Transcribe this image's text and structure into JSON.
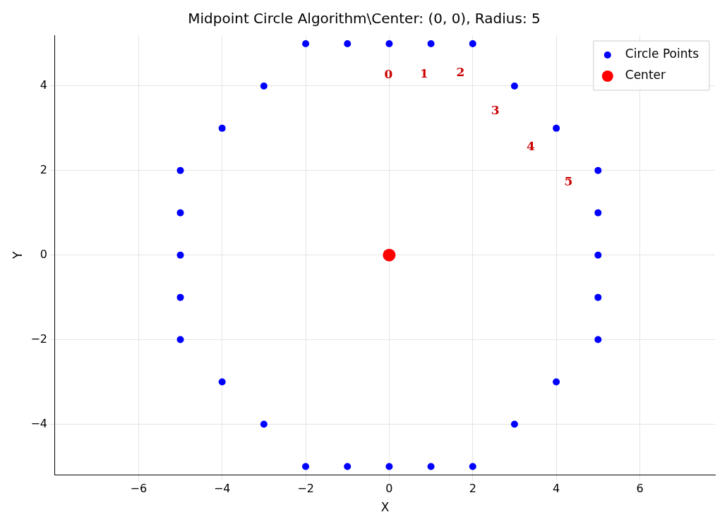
{
  "chart_data": {
    "type": "scatter",
    "title": "Midpoint Circle Algorithm\\Center: (0, 0), Radius: 5",
    "xlabel": "X",
    "ylabel": "Y",
    "series": [
      {
        "name": "Circle Points",
        "color": "#0000ff",
        "x": [
          -2,
          -1,
          0,
          1,
          2,
          3,
          -3,
          4,
          -4,
          5,
          5,
          5,
          5,
          5,
          -5,
          -5,
          -5,
          -5,
          -5,
          4,
          -4,
          3,
          -3,
          -2,
          -1,
          0,
          1,
          2
        ],
        "values": [
          5,
          5,
          5,
          5,
          5,
          4,
          4,
          3,
          3,
          2,
          1,
          0,
          -1,
          -2,
          2,
          1,
          0,
          -1,
          -2,
          -3,
          -3,
          -4,
          -4,
          -5,
          -5,
          -5,
          -5,
          -5
        ]
      },
      {
        "name": "Center",
        "color": "#ff0000",
        "x": [
          0
        ],
        "values": [
          0
        ]
      }
    ],
    "annotations": [
      {
        "text": "0",
        "x": 0,
        "y": 5
      },
      {
        "text": "1",
        "x": 1,
        "y": 5
      },
      {
        "text": "2",
        "x": 2,
        "y": 5
      },
      {
        "text": "3",
        "x": 3,
        "y": 4
      },
      {
        "text": "4",
        "x": 4,
        "y": 3
      },
      {
        "text": "5",
        "x": 5,
        "y": 2
      }
    ],
    "xlim": [
      -8,
      7.8
    ],
    "ylim": [
      -5.2,
      5.2
    ],
    "xticks": [
      {
        "value": -6,
        "label": "−6"
      },
      {
        "value": -4,
        "label": "−4"
      },
      {
        "value": -2,
        "label": "−2"
      },
      0,
      2,
      4,
      6
    ],
    "yticks": [
      {
        "value": -4,
        "label": "−4"
      },
      {
        "value": -2,
        "label": "−2"
      },
      0,
      2,
      4
    ],
    "grid": true,
    "legend": "top right",
    "marker": "circle"
  }
}
